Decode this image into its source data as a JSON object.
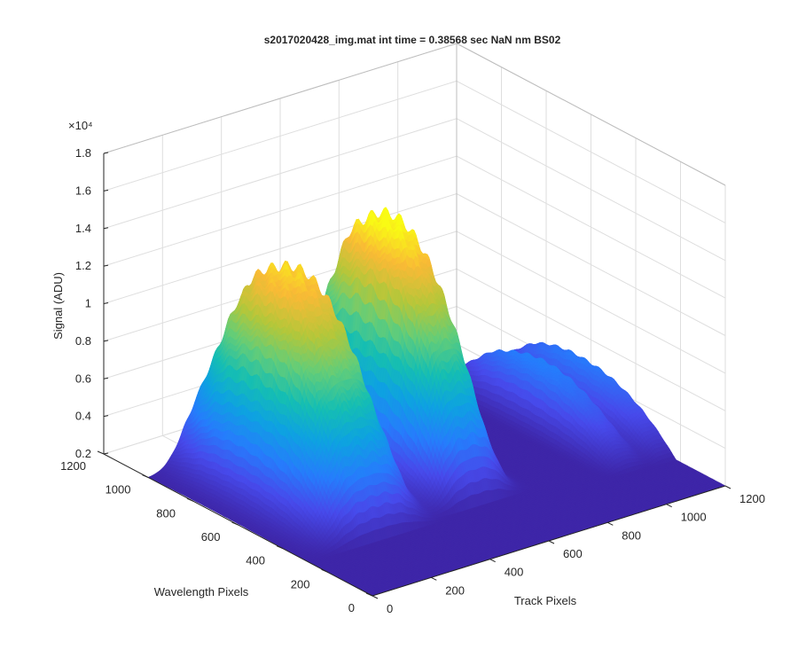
{
  "chart_data": {
    "type": "surface",
    "title": "s2017020428_img.mat int time = 0.38568 sec  NaN nm BS02",
    "xlabel": "Track Pixels",
    "ylabel": "Wavelength Pixels",
    "zlabel": "Signal (ADU)",
    "z_exponent_label": "×10⁴",
    "x_ticks": [
      "0",
      "200",
      "400",
      "600",
      "800",
      "1000",
      "1200"
    ],
    "y_ticks": [
      "0",
      "200",
      "400",
      "600",
      "800",
      "1000",
      "1200"
    ],
    "z_ticks": [
      "0.2",
      "0.4",
      "0.6",
      "0.8",
      "1",
      "1.2",
      "1.4",
      "1.6",
      "1.8"
    ],
    "xlim": [
      0,
      1200
    ],
    "ylim": [
      0,
      1200
    ],
    "zlim": [
      2000,
      18000
    ],
    "grid": true,
    "colormap": "parula",
    "surface_peaks": [
      {
        "track_center": 250,
        "track_width": 115,
        "wavelength_peak_at": 700,
        "peak_signal": 13500
      },
      {
        "track_center": 600,
        "track_width": 85,
        "wavelength_peak_at": 720,
        "peak_signal": 14500
      },
      {
        "track_center": 1060,
        "track_width": 45,
        "wavelength_peak_at": 650,
        "peak_signal": 5200
      },
      {
        "track_center": 1180,
        "track_width": 40,
        "wavelength_peak_at": 640,
        "peak_signal": 5000
      }
    ],
    "baseline_signal": 2000
  }
}
